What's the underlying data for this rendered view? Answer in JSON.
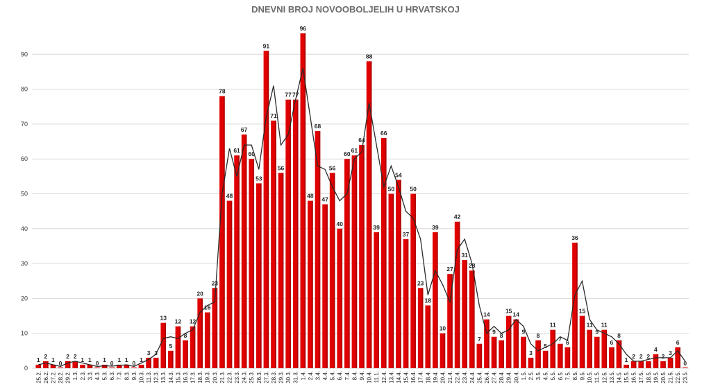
{
  "chart_data": {
    "type": "bar",
    "title": "DNEVNI BROJ NOVOOBOLJELIH U HRVATSKOJ",
    "xlabel": "",
    "ylabel": "",
    "ylim": [
      0,
      100
    ],
    "yticks": [
      0,
      10,
      20,
      30,
      40,
      50,
      60,
      70,
      80,
      90
    ],
    "grid": true,
    "legend": "none",
    "bar_color": "#e00000",
    "bar_dark_color": "#8b0000",
    "trend_color": "#2a2a2a",
    "categories": [
      "25.2.",
      "26.2.",
      "27.2.",
      "28.2.",
      "29.2.",
      "1.3.",
      "2.3.",
      "3.3.",
      "4.3.",
      "5.3.",
      "6.3.",
      "7.3.",
      "8.3.",
      "9.3.",
      "10.3.",
      "11.3.",
      "12.3.",
      "13.3.",
      "14.3.",
      "15.3.",
      "16.3.",
      "17.3.",
      "18.3.",
      "19.3.",
      "20.3.",
      "21.3.",
      "22.3.",
      "23.3.",
      "24.3.",
      "25.3.",
      "26.3.",
      "27.3.",
      "28.3.",
      "29.3.",
      "30.3.",
      "31.3.",
      "1.4.",
      "2.4.",
      "3.4.",
      "4.4.",
      "5.4.",
      "6.4.",
      "7.4.",
      "8.4.",
      "9.4.",
      "10.4.",
      "11.1.",
      "12.4.",
      "13.4.",
      "14.4.",
      "15.4.",
      "16.4.",
      "17.4.",
      "18.4.",
      "19.4.",
      "20.4.",
      "21.4.",
      "22.4.",
      "23.4.",
      "24.4.",
      "25.4.",
      "26.4.",
      "27.4.",
      "28.4.",
      "29.4.",
      "30.4.",
      "1.5.",
      "2.5.",
      "3.5.",
      "4.5.",
      "5.5.",
      "6.5.",
      "7.5.",
      "8.5.",
      "9.5.",
      "10.5.",
      "11.5.",
      "12.5.",
      "13.5.",
      "14.5.",
      "15.5.",
      "16.5.",
      "17.5.",
      "18.5.",
      "19.5.",
      "20.5.",
      "21.5.",
      "22.5.",
      "23.5."
    ],
    "values": [
      1,
      2,
      1,
      0,
      2,
      2,
      1,
      1,
      0,
      1,
      0,
      1,
      1,
      0,
      1,
      3,
      3,
      13,
      5,
      12,
      8,
      12,
      20,
      16,
      23,
      78,
      48,
      61,
      67,
      60,
      53,
      91,
      71,
      56,
      77,
      77,
      96,
      48,
      68,
      47,
      56,
      40,
      60,
      61,
      64,
      88,
      39,
      66,
      50,
      54,
      37,
      50,
      23,
      18,
      39,
      10,
      27,
      42,
      31,
      28,
      7,
      14,
      9,
      8,
      15,
      14,
      9,
      3,
      8,
      5,
      11,
      7,
      6,
      36,
      15,
      11,
      9,
      11,
      6,
      8,
      1,
      2,
      2,
      2,
      4,
      2,
      3,
      6,
      0
    ],
    "trend_series": {
      "type": "line",
      "values": [
        1,
        1.5,
        1,
        0.5,
        1.5,
        2,
        1.5,
        1,
        0.5,
        0.7,
        0.6,
        0.8,
        1,
        0.5,
        1.5,
        2.5,
        4,
        8.5,
        9,
        8.5,
        10,
        11,
        16,
        18,
        19,
        50,
        63,
        55,
        64,
        64,
        57,
        72,
        81,
        64,
        67,
        77,
        86,
        72,
        58,
        57,
        52,
        48,
        50,
        60,
        62,
        76,
        64,
        52,
        58,
        52,
        45,
        43,
        37,
        21,
        28,
        24,
        19,
        34,
        37,
        30,
        18,
        10,
        12,
        10,
        11,
        14,
        12,
        7,
        5,
        6,
        7,
        9,
        8,
        21,
        25,
        14,
        11,
        10,
        9,
        7,
        4,
        2,
        2,
        2.5,
        3,
        3,
        3,
        5,
        2
      ]
    }
  }
}
